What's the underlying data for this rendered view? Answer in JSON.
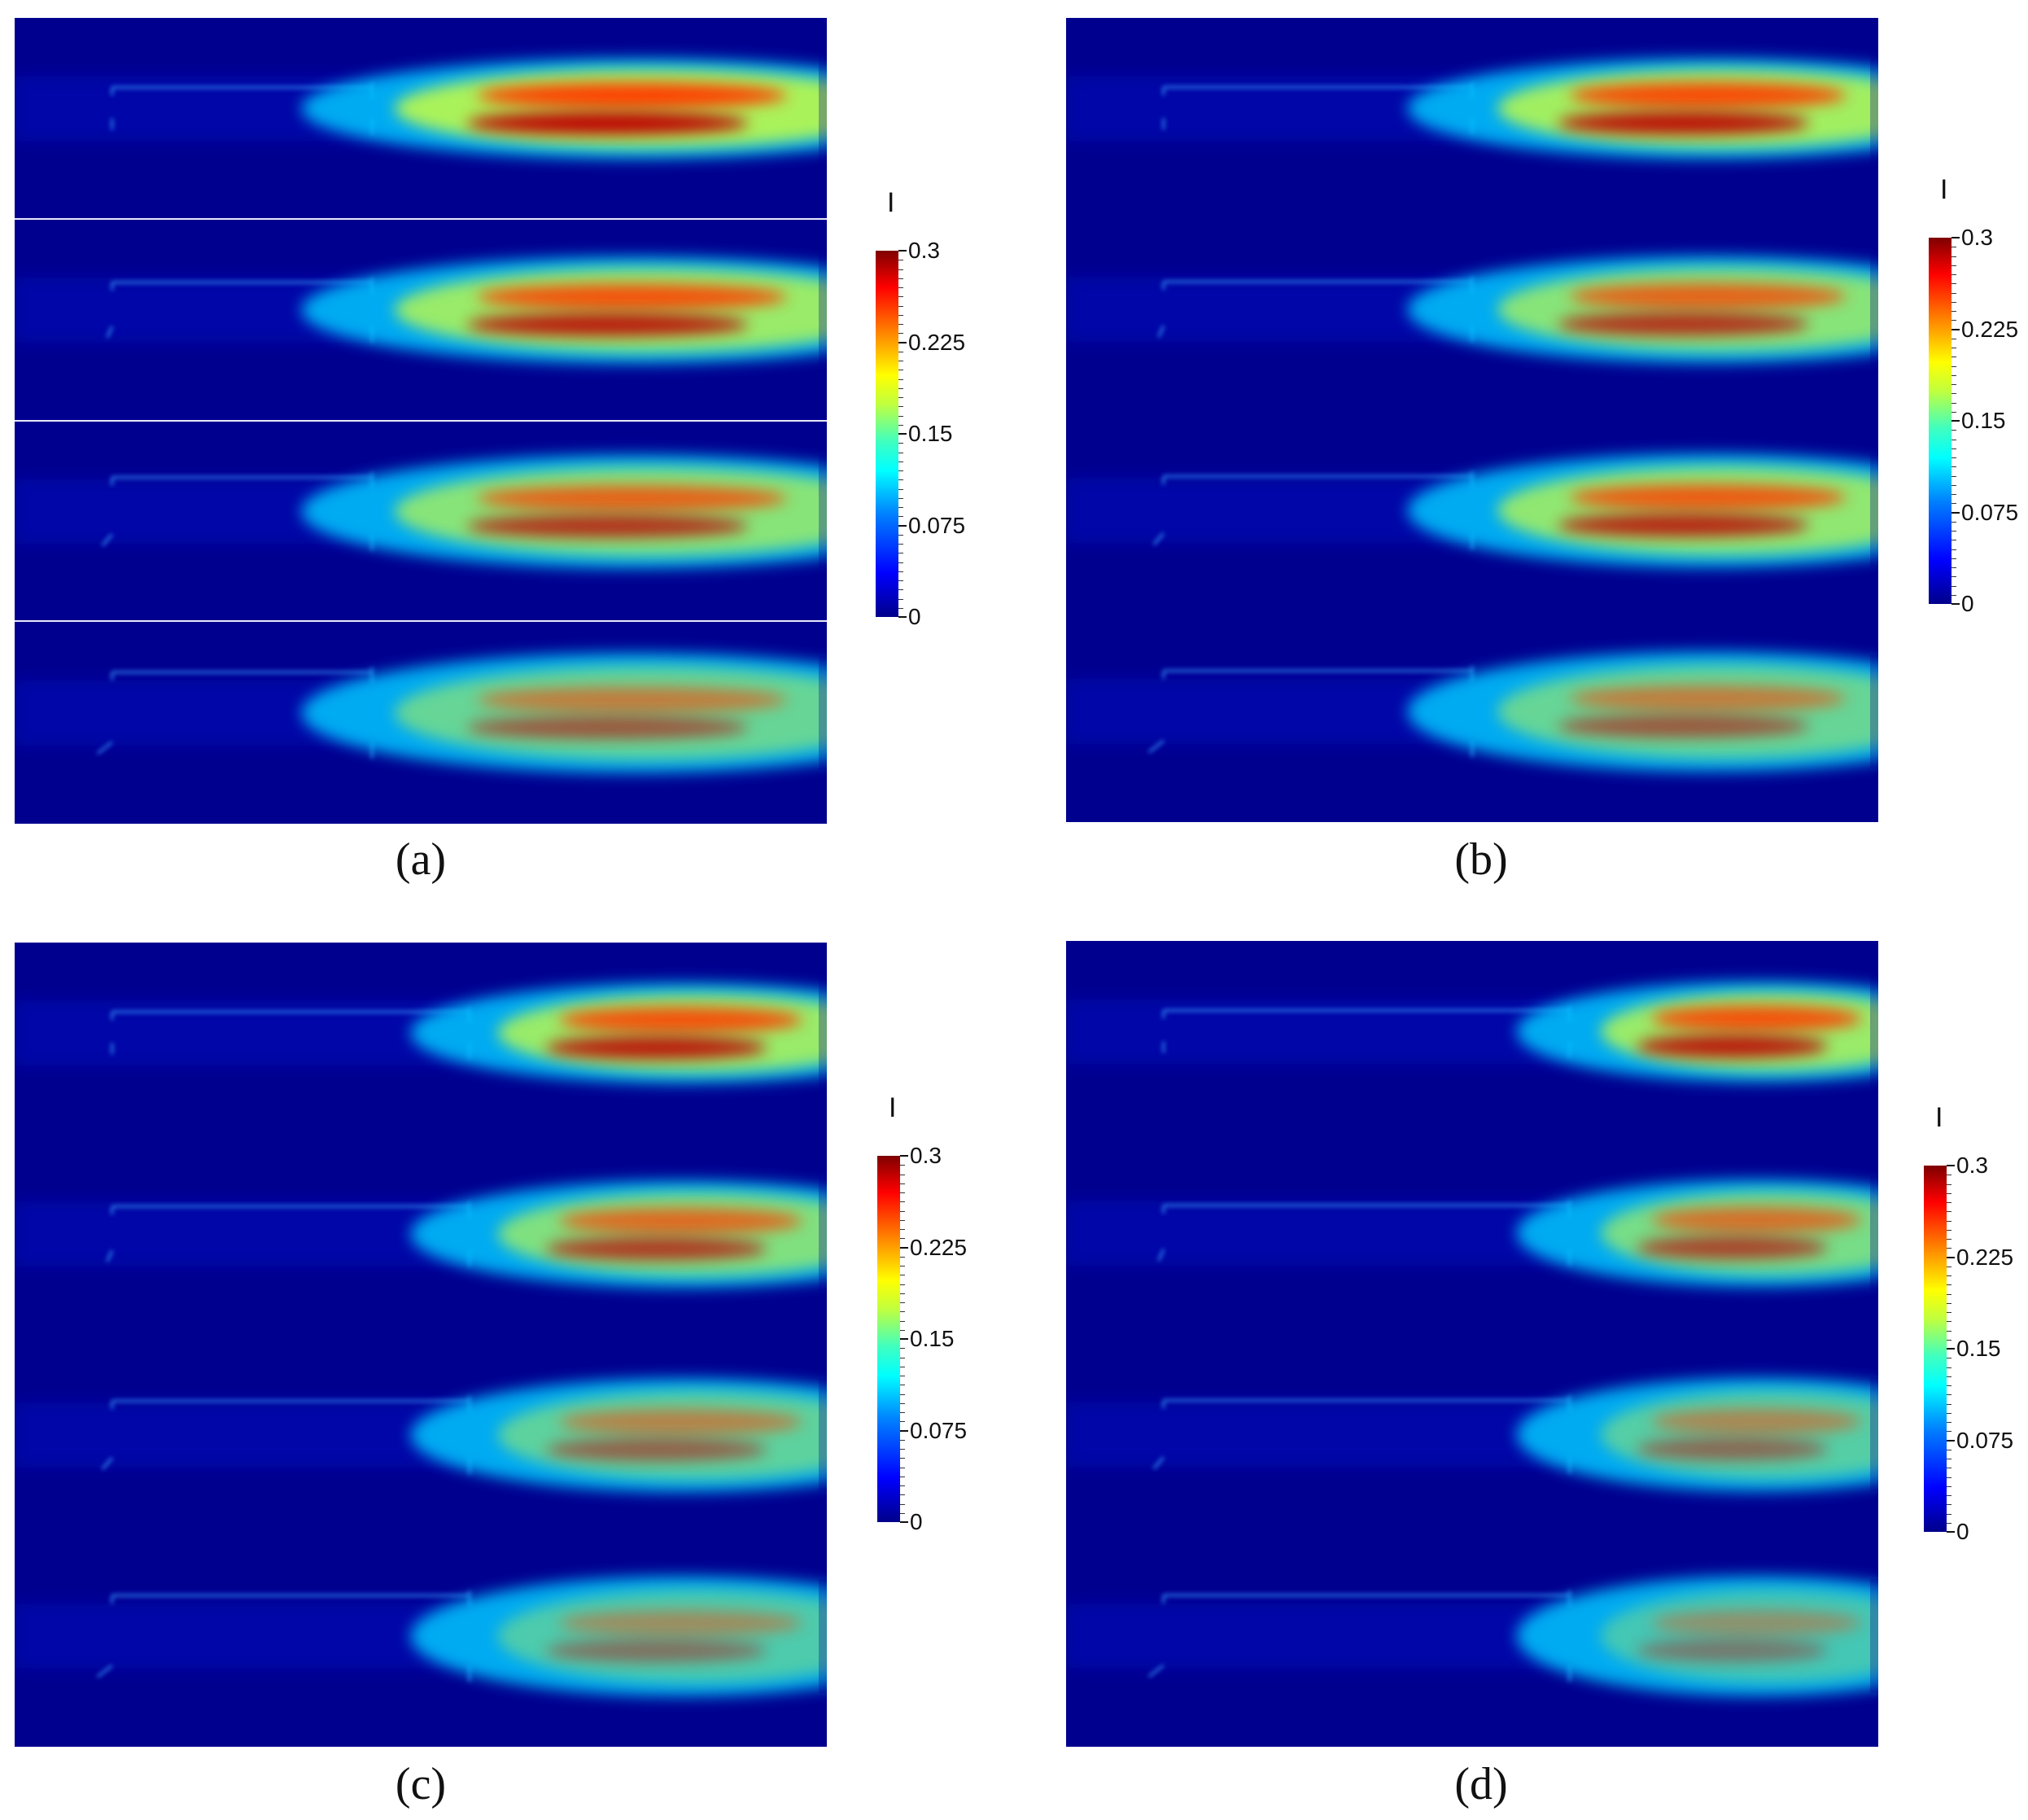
{
  "panels": [
    {
      "id": "a",
      "caption": "(a)"
    },
    {
      "id": "b",
      "caption": "(b)"
    },
    {
      "id": "c",
      "caption": "(c)"
    },
    {
      "id": "d",
      "caption": "(d)"
    }
  ],
  "colorbar": {
    "variable": "I",
    "ticks": [
      "0.3",
      "0.225",
      "0.15",
      "0.075",
      "0"
    ]
  },
  "colors": {
    "background_field": "#00008f",
    "high": "#8b0000",
    "mid": "#ffff00",
    "low": "#00ffff"
  }
}
